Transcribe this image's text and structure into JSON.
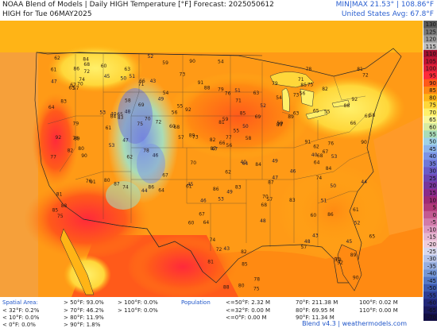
{
  "header": {
    "title_line1": "NOAA Blend of Models | Daily HIGH Temperature [°F] Forecast: 2025050612",
    "title_line2": "HIGH for Tue 06MAY2025",
    "minmax": "MIN|MAX 21.53° | 108.86°F",
    "us_avg": "United States Avg: 67.8°F"
  },
  "colorbar": {
    "labels": [
      "130",
      "125",
      "120",
      "115",
      "110",
      "105",
      "100",
      "95",
      "90",
      "85",
      "80",
      "75",
      "70",
      "65",
      "60",
      "55",
      "50",
      "45",
      "40",
      "35",
      "30",
      "25",
      "20",
      "15",
      "10",
      "5",
      "0",
      "-5",
      "-10",
      "-15",
      "-20",
      "-25",
      "-30",
      "-35",
      "-40",
      "-45",
      "-50",
      "-55",
      "-60",
      "-65",
      "-70"
    ],
    "colors": [
      "#5a5a5a",
      "#7a7a7a",
      "#9e9e9e",
      "#c0c0c0",
      "#a01030",
      "#c41434",
      "#e0203a",
      "#ff2a3a",
      "#ff5a1a",
      "#ff8a12",
      "#ffb416",
      "#ffd73a",
      "#fff06a",
      "#f8f89a",
      "#d8eca0",
      "#a9dcb8",
      "#9fd2e6",
      "#8db4ea",
      "#7b94e6",
      "#6f78d8",
      "#6a5bc8",
      "#6c45b2",
      "#76369c",
      "#8a2a8a",
      "#9d2a76",
      "#b03a7a",
      "#c35a92",
      "#d07aaa",
      "#dc98c0",
      "#e6b6d2",
      "#eeccdd",
      "#d8d8ee",
      "#b8c4e8",
      "#96aee0",
      "#7496d6",
      "#5478c6",
      "#3c5ab0",
      "#2c3e96",
      "#22287a",
      "#1a1a5e",
      "#120e44"
    ]
  },
  "footer": {
    "spatial_area_label": "Spatial Area:",
    "sa_lt32": "< 32°F: 0.2%",
    "sa_lt10": "< 10°F: 0.0%",
    "sa_lt0": "< 0°F: 0.0%",
    "sa_gt50": "> 50°F: 93.0%",
    "sa_gt70": "> 70°F: 46.2%",
    "sa_gt80": "> 80°F: 11.9%",
    "sa_gt90": "> 90°F: 1.8%",
    "sa_gt100": "> 100°F: 0.0%",
    "sa_gt110": "> 110°F: 0.0%",
    "population_label": "Population",
    "pop_lt50": "<=50°F: 2.32 M",
    "pop_lt32": "<=32°F: 0.00 M",
    "pop_lt0": "<=0°F: 0.00 M",
    "pop_70": "70°F: 211.38 M",
    "pop_80": "80°F: 69.95 M",
    "pop_90": "90°F: 11.34 M",
    "pop_100": "100°F: 0.02 M",
    "pop_110": "110°F: 0.00 M",
    "credit": "Blend v4.3 | weathermodels.com"
  },
  "city_values": [
    "57",
    "61",
    "67",
    "64",
    "74",
    "83",
    "84",
    "86",
    "68",
    "70",
    "62",
    "53",
    "47",
    "60",
    "65",
    "72",
    "75",
    "78",
    "80",
    "81",
    "82",
    "85",
    "88",
    "89",
    "90",
    "91",
    "92",
    "79",
    "77",
    "76",
    "73",
    "71",
    "69",
    "66",
    "63",
    "59",
    "58",
    "56",
    "55",
    "54",
    "52",
    "51",
    "50",
    "49",
    "48",
    "45",
    "43",
    "40",
    "44",
    "46",
    "87"
  ],
  "map": {
    "emphasis_colors": {
      "hot": "#ff5a1a",
      "warm": "#ffb416",
      "cool": "#8db4ea",
      "cold": "#6f78d8",
      "ocean": "#f4a030"
    }
  }
}
